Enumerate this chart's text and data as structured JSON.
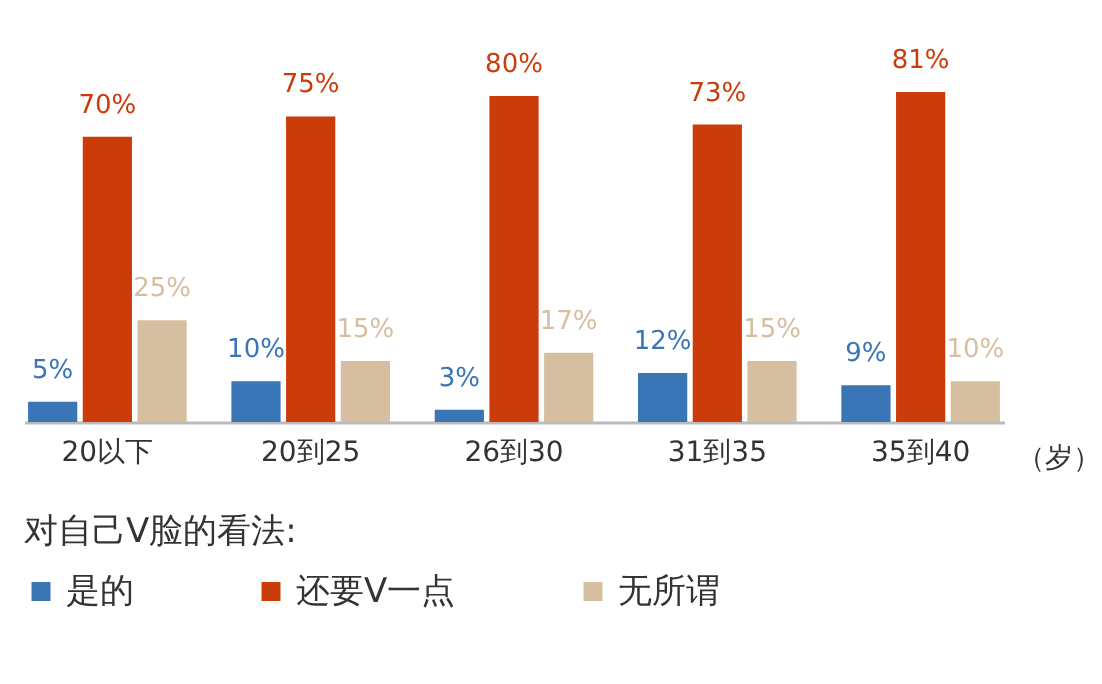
{
  "chart_data": {
    "type": "bar",
    "xlabel": "（岁）",
    "legend_title": "对自己V脸的看法:",
    "legend": "bottom left",
    "categories": [
      "20以下",
      "20到25",
      "26到30",
      "31到35",
      "35到40"
    ],
    "series": [
      {
        "name": "是的",
        "color": "#3a75b8",
        "values": [
          5,
          10,
          3,
          12,
          9
        ],
        "value_labels": [
          "5%",
          "10%",
          "3%",
          "12%",
          "9%"
        ]
      },
      {
        "name": "还要V一点",
        "color": "#cc3b0a",
        "values": [
          70,
          75,
          80,
          73,
          81
        ],
        "value_labels": [
          "70%",
          "75%",
          "80%",
          "73%",
          "81%"
        ]
      },
      {
        "name": "无所谓",
        "color": "#d6bfa0",
        "values": [
          25,
          15,
          17,
          15,
          10
        ],
        "value_labels": [
          "25%",
          "15%",
          "17%",
          "15%",
          "10%"
        ]
      }
    ]
  }
}
